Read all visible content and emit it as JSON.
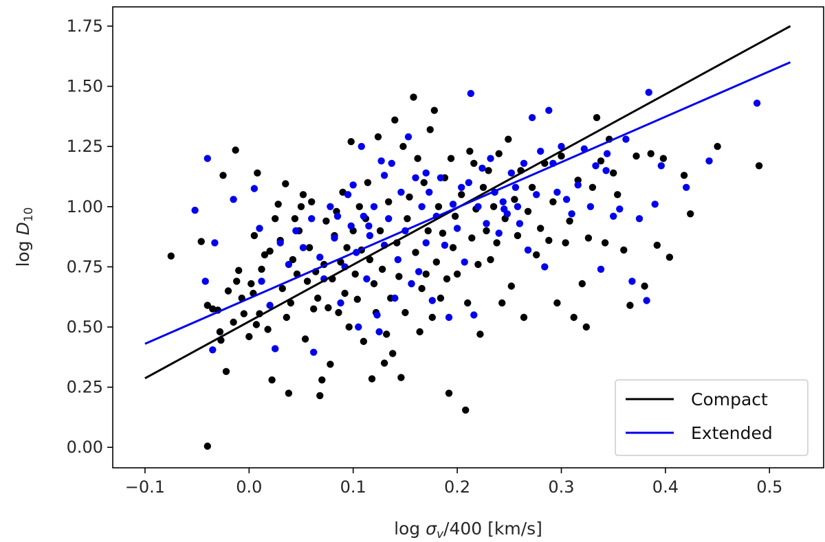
{
  "chart_data": {
    "type": "scatter",
    "xlabel_prefix": "log ",
    "xlabel_symbol": "σ",
    "xlabel_sub": "v",
    "xlabel_suffix": "/400 [km/s]",
    "ylabel_prefix": "log ",
    "ylabel_symbol": "D",
    "ylabel_sub": "10",
    "xlim": [
      -0.131,
      0.552
    ],
    "ylim": [
      -0.085,
      1.83
    ],
    "xticks": [
      -0.1,
      0.0,
      0.1,
      0.2,
      0.3,
      0.4,
      0.5
    ],
    "xtick_labels": [
      "−0.1",
      "0.0",
      "0.1",
      "0.2",
      "0.3",
      "0.4",
      "0.5"
    ],
    "yticks": [
      0.0,
      0.25,
      0.5,
      0.75,
      1.0,
      1.25,
      1.5,
      1.75
    ],
    "ytick_labels": [
      "0.00",
      "0.25",
      "0.50",
      "0.75",
      "1.00",
      "1.25",
      "1.50",
      "1.75"
    ],
    "legend_position": "lower-right",
    "series": [
      {
        "name": "Compact",
        "color": "#000000",
        "fit": [
          [
            -0.1,
            0.287
          ],
          [
            0.52,
            1.75
          ]
        ],
        "points": [
          [
            -0.075,
            0.795
          ],
          [
            -0.046,
            0.855
          ],
          [
            -0.04,
            0.005
          ],
          [
            -0.04,
            0.59
          ],
          [
            -0.035,
            0.575
          ],
          [
            -0.03,
            0.57
          ],
          [
            -0.028,
            0.48
          ],
          [
            -0.027,
            0.445
          ],
          [
            -0.025,
            1.13
          ],
          [
            -0.022,
            0.315
          ],
          [
            -0.02,
            0.65
          ],
          [
            -0.015,
            0.52
          ],
          [
            -0.013,
            1.235
          ],
          [
            -0.012,
            0.69
          ],
          [
            -0.01,
            0.735
          ],
          [
            -0.007,
            0.62
          ],
          [
            -0.005,
            0.555
          ],
          [
            0.0,
            0.46
          ],
          [
            0.002,
            0.68
          ],
          [
            0.004,
            0.64
          ],
          [
            0.005,
            0.88
          ],
          [
            0.007,
            0.51
          ],
          [
            0.008,
            1.14
          ],
          [
            0.01,
            0.555
          ],
          [
            0.012,
            0.74
          ],
          [
            0.015,
            0.8
          ],
          [
            0.018,
            0.49
          ],
          [
            0.02,
            0.815
          ],
          [
            0.022,
            0.28
          ],
          [
            0.025,
            0.95
          ],
          [
            0.028,
            1.01
          ],
          [
            0.03,
            0.86
          ],
          [
            0.032,
            0.66
          ],
          [
            0.035,
            1.095
          ],
          [
            0.036,
            0.54
          ],
          [
            0.038,
            0.225
          ],
          [
            0.04,
            0.6
          ],
          [
            0.042,
            0.78
          ],
          [
            0.044,
            0.95
          ],
          [
            0.046,
            0.72
          ],
          [
            0.048,
            0.9
          ],
          [
            0.05,
            1.0
          ],
          [
            0.052,
            1.05
          ],
          [
            0.054,
            0.45
          ],
          [
            0.056,
            0.69
          ],
          [
            0.058,
            0.83
          ],
          [
            0.06,
            1.02
          ],
          [
            0.062,
            0.575
          ],
          [
            0.064,
            0.73
          ],
          [
            0.066,
            0.62
          ],
          [
            0.068,
            0.215
          ],
          [
            0.07,
            0.28
          ],
          [
            0.072,
            0.76
          ],
          [
            0.074,
            0.94
          ],
          [
            0.076,
            0.58
          ],
          [
            0.078,
            0.345
          ],
          [
            0.08,
            0.7
          ],
          [
            0.082,
            0.88
          ],
          [
            0.084,
            0.98
          ],
          [
            0.086,
            0.56
          ],
          [
            0.088,
            0.77
          ],
          [
            0.09,
            1.06
          ],
          [
            0.092,
            0.64
          ],
          [
            0.094,
            0.83
          ],
          [
            0.096,
            0.5
          ],
          [
            0.098,
            1.27
          ],
          [
            0.1,
            0.9
          ],
          [
            0.102,
            0.72
          ],
          [
            0.104,
            0.615
          ],
          [
            0.106,
            1.0
          ],
          [
            0.108,
            0.82
          ],
          [
            0.11,
            0.44
          ],
          [
            0.112,
            0.95
          ],
          [
            0.114,
            1.1
          ],
          [
            0.116,
            0.78
          ],
          [
            0.118,
            0.285
          ],
          [
            0.12,
            0.68
          ],
          [
            0.122,
            0.56
          ],
          [
            0.124,
            1.29
          ],
          [
            0.126,
            0.9
          ],
          [
            0.128,
            0.74
          ],
          [
            0.13,
            0.35
          ],
          [
            0.132,
            0.47
          ],
          [
            0.134,
            1.02
          ],
          [
            0.136,
            0.62
          ],
          [
            0.138,
            0.39
          ],
          [
            0.14,
            1.36
          ],
          [
            0.142,
            0.85
          ],
          [
            0.144,
            0.71
          ],
          [
            0.146,
            0.29
          ],
          [
            0.148,
            1.25
          ],
          [
            0.15,
            0.56
          ],
          [
            0.152,
            0.95
          ],
          [
            0.154,
            1.04
          ],
          [
            0.156,
            0.68
          ],
          [
            0.158,
            1.455
          ],
          [
            0.16,
            0.81
          ],
          [
            0.162,
            1.2
          ],
          [
            0.164,
            0.48
          ],
          [
            0.166,
            0.66
          ],
          [
            0.168,
            1.1
          ],
          [
            0.17,
            0.72
          ],
          [
            0.172,
            0.9
          ],
          [
            0.174,
            1.32
          ],
          [
            0.176,
            0.54
          ],
          [
            0.178,
            1.4
          ],
          [
            0.18,
            0.77
          ],
          [
            0.182,
            1.0
          ],
          [
            0.184,
            0.62
          ],
          [
            0.186,
            0.89
          ],
          [
            0.188,
            1.12
          ],
          [
            0.19,
            0.7
          ],
          [
            0.192,
            0.225
          ],
          [
            0.194,
            1.2
          ],
          [
            0.196,
            0.83
          ],
          [
            0.198,
            0.96
          ],
          [
            0.2,
            0.72
          ],
          [
            0.204,
            1.05
          ],
          [
            0.208,
            0.155
          ],
          [
            0.21,
            0.6
          ],
          [
            0.212,
            1.23
          ],
          [
            0.214,
            0.87
          ],
          [
            0.216,
            1.18
          ],
          [
            0.218,
            0.99
          ],
          [
            0.22,
            0.76
          ],
          [
            0.222,
            0.47
          ],
          [
            0.225,
            1.08
          ],
          [
            0.228,
            0.9
          ],
          [
            0.23,
            1.15
          ],
          [
            0.232,
            0.78
          ],
          [
            0.235,
            1.0
          ],
          [
            0.238,
            0.85
          ],
          [
            0.24,
            1.22
          ],
          [
            0.243,
            0.6
          ],
          [
            0.246,
            0.95
          ],
          [
            0.249,
            1.28
          ],
          [
            0.252,
            0.67
          ],
          [
            0.255,
            1.03
          ],
          [
            0.258,
            0.88
          ],
          [
            0.261,
            1.15
          ],
          [
            0.264,
            0.54
          ],
          [
            0.268,
            0.98
          ],
          [
            0.272,
            1.08
          ],
          [
            0.276,
            0.8
          ],
          [
            0.28,
            0.91
          ],
          [
            0.284,
            1.18
          ],
          [
            0.288,
            0.86
          ],
          [
            0.292,
            1.02
          ],
          [
            0.296,
            0.6
          ],
          [
            0.3,
            1.21
          ],
          [
            0.304,
            0.85
          ],
          [
            0.308,
            0.94
          ],
          [
            0.312,
            0.54
          ],
          [
            0.316,
            1.11
          ],
          [
            0.32,
            0.68
          ],
          [
            0.324,
            0.5
          ],
          [
            0.326,
            0.87
          ],
          [
            0.33,
            1.08
          ],
          [
            0.334,
            1.37
          ],
          [
            0.338,
            1.19
          ],
          [
            0.342,
            0.85
          ],
          [
            0.346,
            1.28
          ],
          [
            0.35,
            1.14
          ],
          [
            0.354,
            1.05
          ],
          [
            0.36,
            0.82
          ],
          [
            0.366,
            0.59
          ],
          [
            0.372,
            1.21
          ],
          [
            0.38,
            0.67
          ],
          [
            0.386,
            1.22
          ],
          [
            0.392,
            0.84
          ],
          [
            0.398,
            1.2
          ],
          [
            0.404,
            0.79
          ],
          [
            0.418,
            1.13
          ],
          [
            0.424,
            0.97
          ],
          [
            0.45,
            1.25
          ],
          [
            0.49,
            1.17
          ]
        ]
      },
      {
        "name": "Extended",
        "color": "#0000ee",
        "fit": [
          [
            -0.1,
            0.43
          ],
          [
            0.52,
            1.6
          ]
        ],
        "points": [
          [
            -0.052,
            0.985
          ],
          [
            -0.042,
            0.69
          ],
          [
            -0.04,
            1.2
          ],
          [
            -0.035,
            0.405
          ],
          [
            -0.033,
            0.85
          ],
          [
            -0.015,
            1.03
          ],
          [
            0.005,
            1.075
          ],
          [
            0.01,
            0.91
          ],
          [
            0.012,
            0.69
          ],
          [
            0.02,
            0.59
          ],
          [
            0.025,
            0.41
          ],
          [
            0.03,
            0.85
          ],
          [
            0.038,
            0.76
          ],
          [
            0.045,
            0.9
          ],
          [
            0.052,
            0.83
          ],
          [
            0.06,
            0.95
          ],
          [
            0.062,
            0.395
          ],
          [
            0.068,
            0.79
          ],
          [
            0.072,
            0.7
          ],
          [
            0.078,
            1.0
          ],
          [
            0.082,
            0.87
          ],
          [
            0.085,
            0.96
          ],
          [
            0.088,
            0.6
          ],
          [
            0.092,
            0.75
          ],
          [
            0.095,
            1.05
          ],
          [
            0.098,
            0.92
          ],
          [
            0.1,
            1.09
          ],
          [
            0.103,
            0.81
          ],
          [
            0.105,
            0.5
          ],
          [
            0.108,
            1.25
          ],
          [
            0.11,
            0.96
          ],
          [
            0.113,
            0.7
          ],
          [
            0.116,
            0.88
          ],
          [
            0.12,
            1.0
          ],
          [
            0.123,
            0.55
          ],
          [
            0.125,
            0.48
          ],
          [
            0.127,
            1.19
          ],
          [
            0.13,
            0.84
          ],
          [
            0.134,
            0.95
          ],
          [
            0.137,
            1.18
          ],
          [
            0.14,
            0.62
          ],
          [
            0.143,
            0.78
          ],
          [
            0.146,
            1.06
          ],
          [
            0.15,
            0.9
          ],
          [
            0.153,
            1.29
          ],
          [
            0.156,
            0.68
          ],
          [
            0.16,
            1.12
          ],
          [
            0.163,
            0.73
          ],
          [
            0.166,
            1.0
          ],
          [
            0.17,
            0.85
          ],
          [
            0.173,
            1.06
          ],
          [
            0.176,
            0.61
          ],
          [
            0.18,
            0.96
          ],
          [
            0.184,
            1.12
          ],
          [
            0.188,
            0.84
          ],
          [
            0.192,
            0.54
          ],
          [
            0.196,
            1.01
          ],
          [
            0.2,
            0.91
          ],
          [
            0.204,
            1.08
          ],
          [
            0.207,
            0.77
          ],
          [
            0.211,
            1.1
          ],
          [
            0.213,
            1.47
          ],
          [
            0.216,
            0.55
          ],
          [
            0.22,
            1.0
          ],
          [
            0.224,
            1.16
          ],
          [
            0.228,
            0.93
          ],
          [
            0.232,
            1.2
          ],
          [
            0.236,
            1.06
          ],
          [
            0.24,
            0.89
          ],
          [
            0.244,
            1.02
          ],
          [
            0.248,
            0.97
          ],
          [
            0.252,
            1.14
          ],
          [
            0.256,
            1.08
          ],
          [
            0.26,
            0.93
          ],
          [
            0.264,
            1.18
          ],
          [
            0.268,
            0.82
          ],
          [
            0.272,
            1.37
          ],
          [
            0.276,
            1.05
          ],
          [
            0.28,
            1.23
          ],
          [
            0.284,
            0.75
          ],
          [
            0.288,
            1.4
          ],
          [
            0.292,
            1.18
          ],
          [
            0.296,
            1.06
          ],
          [
            0.3,
            1.25
          ],
          [
            0.305,
            1.03
          ],
          [
            0.31,
            0.97
          ],
          [
            0.316,
            1.09
          ],
          [
            0.322,
            1.24
          ],
          [
            0.328,
            1.0
          ],
          [
            0.333,
            1.17
          ],
          [
            0.338,
            0.74
          ],
          [
            0.344,
            1.22
          ],
          [
            0.35,
            0.96
          ],
          [
            0.356,
            0.99
          ],
          [
            0.362,
            1.28
          ],
          [
            0.368,
            0.69
          ],
          [
            0.375,
            0.95
          ],
          [
            0.382,
            0.61
          ],
          [
            0.384,
            1.475
          ],
          [
            0.39,
            1.01
          ],
          [
            0.396,
            1.17
          ],
          [
            0.42,
            1.08
          ],
          [
            0.442,
            1.19
          ],
          [
            0.488,
            1.43
          ],
          [
            0.343,
            1.15
          ],
          [
            0.17,
            1.14
          ],
          [
            0.13,
            1.13
          ],
          [
            0.115,
            0.92
          ],
          [
            0.245,
            0.99
          ],
          [
            0.258,
            1.0
          ]
        ]
      }
    ]
  }
}
